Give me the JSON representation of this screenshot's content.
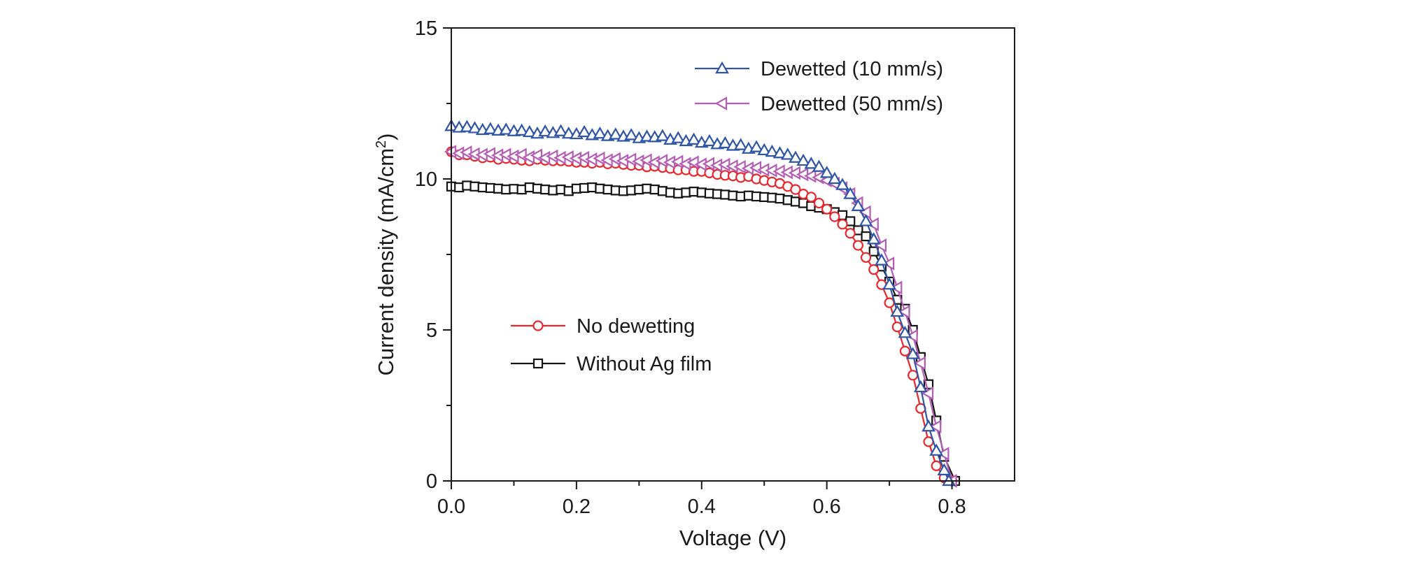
{
  "chart_data": {
    "type": "line",
    "xlabel": "Voltage (V)",
    "ylabel_prefix": "Current density (mA/cm",
    "ylabel_sup": "2",
    "ylabel_suffix": ")",
    "xlim": [
      0.0,
      0.9
    ],
    "ylim": [
      0,
      15
    ],
    "x_ticks": [
      0.0,
      0.2,
      0.4,
      0.6,
      0.8
    ],
    "x_tick_labels": [
      "0.0",
      "0.2",
      "0.4",
      "0.6",
      "0.8"
    ],
    "x_minor_ticks": [
      0.1,
      0.3,
      0.5,
      0.7
    ],
    "y_ticks": [
      0,
      5,
      10,
      15
    ],
    "y_tick_labels": [
      "0",
      "5",
      "10",
      "15"
    ],
    "y_minor_ticks": [
      2.5,
      7.5,
      12.5
    ],
    "series": [
      {
        "name": "Dewetted (10 mm/s)",
        "color": "#2e55a8",
        "marker": "triangle-up",
        "legend_position": "top-right",
        "x": [
          0.0,
          0.0125,
          0.025,
          0.0375,
          0.05,
          0.0625,
          0.075,
          0.0875,
          0.1,
          0.1125,
          0.125,
          0.1375,
          0.15,
          0.1625,
          0.175,
          0.1875,
          0.2,
          0.2125,
          0.225,
          0.2375,
          0.25,
          0.2625,
          0.275,
          0.2875,
          0.3,
          0.3125,
          0.325,
          0.3375,
          0.35,
          0.3625,
          0.375,
          0.3875,
          0.4,
          0.4125,
          0.425,
          0.4375,
          0.45,
          0.4625,
          0.475,
          0.4875,
          0.5,
          0.5125,
          0.525,
          0.5375,
          0.55,
          0.5625,
          0.575,
          0.5875,
          0.6,
          0.6125,
          0.625,
          0.6375,
          0.65,
          0.6625,
          0.675,
          0.6875,
          0.7,
          0.7125,
          0.725,
          0.7375,
          0.75,
          0.7625,
          0.775,
          0.7875,
          0.795
        ],
        "y": [
          11.75,
          11.7,
          11.72,
          11.68,
          11.62,
          11.65,
          11.6,
          11.63,
          11.58,
          11.6,
          11.55,
          11.5,
          11.57,
          11.52,
          11.58,
          11.5,
          11.48,
          11.55,
          11.45,
          11.5,
          11.42,
          11.47,
          11.4,
          11.45,
          11.35,
          11.4,
          11.38,
          11.42,
          11.3,
          11.35,
          11.25,
          11.3,
          11.2,
          11.25,
          11.15,
          11.18,
          11.1,
          11.12,
          11.0,
          11.05,
          10.95,
          10.9,
          10.85,
          10.8,
          10.7,
          10.6,
          10.5,
          10.4,
          10.2,
          10.0,
          9.8,
          9.5,
          9.1,
          8.6,
          8.0,
          7.3,
          6.5,
          5.6,
          4.9,
          4.2,
          3.1,
          1.8,
          1.0,
          0.35,
          0.0
        ]
      },
      {
        "name": "Dewetted (50 mm/s)",
        "color": "#b55cb5",
        "marker": "triangle-left",
        "legend_position": "top-right",
        "x": [
          0.0,
          0.0125,
          0.025,
          0.0375,
          0.05,
          0.0625,
          0.075,
          0.0875,
          0.1,
          0.1125,
          0.125,
          0.1375,
          0.15,
          0.1625,
          0.175,
          0.1875,
          0.2,
          0.2125,
          0.225,
          0.2375,
          0.25,
          0.2625,
          0.275,
          0.2875,
          0.3,
          0.3125,
          0.325,
          0.3375,
          0.35,
          0.3625,
          0.375,
          0.3875,
          0.4,
          0.4125,
          0.425,
          0.4375,
          0.45,
          0.4625,
          0.475,
          0.4875,
          0.5,
          0.5125,
          0.525,
          0.5375,
          0.55,
          0.5625,
          0.575,
          0.5875,
          0.6,
          0.6125,
          0.625,
          0.6375,
          0.65,
          0.6625,
          0.675,
          0.6875,
          0.7,
          0.7125,
          0.725,
          0.7375,
          0.75,
          0.7625,
          0.775,
          0.7875,
          0.8
        ],
        "y": [
          10.9,
          10.85,
          10.88,
          10.82,
          10.8,
          10.83,
          10.78,
          10.8,
          10.75,
          10.8,
          10.72,
          10.78,
          10.7,
          10.75,
          10.7,
          10.72,
          10.68,
          10.7,
          10.65,
          10.68,
          10.62,
          10.66,
          10.6,
          10.64,
          10.58,
          10.62,
          10.55,
          10.6,
          10.55,
          10.57,
          10.5,
          10.55,
          10.48,
          10.5,
          10.45,
          10.47,
          10.42,
          10.4,
          10.35,
          10.37,
          10.3,
          10.28,
          10.25,
          10.22,
          10.2,
          10.15,
          10.1,
          10.05,
          9.95,
          9.85,
          9.7,
          9.5,
          9.2,
          8.9,
          8.5,
          7.8,
          7.2,
          6.4,
          5.6,
          4.8,
          3.9,
          2.9,
          1.8,
          0.9,
          0.0
        ]
      },
      {
        "name": "No dewetting",
        "color": "#e8262b",
        "marker": "circle",
        "legend_position": "bottom-left",
        "x": [
          0.0,
          0.0125,
          0.025,
          0.0375,
          0.05,
          0.0625,
          0.075,
          0.0875,
          0.1,
          0.1125,
          0.125,
          0.1375,
          0.15,
          0.1625,
          0.175,
          0.1875,
          0.2,
          0.2125,
          0.225,
          0.2375,
          0.25,
          0.2625,
          0.275,
          0.2875,
          0.3,
          0.3125,
          0.325,
          0.3375,
          0.35,
          0.3625,
          0.375,
          0.3875,
          0.4,
          0.4125,
          0.425,
          0.4375,
          0.45,
          0.4625,
          0.475,
          0.4875,
          0.5,
          0.5125,
          0.525,
          0.5375,
          0.55,
          0.5625,
          0.575,
          0.5875,
          0.6,
          0.6125,
          0.625,
          0.6375,
          0.65,
          0.6625,
          0.675,
          0.6875,
          0.7,
          0.7125,
          0.725,
          0.7375,
          0.75,
          0.7625,
          0.775,
          0.7875,
          0.8
        ],
        "y": [
          10.9,
          10.8,
          10.8,
          10.75,
          10.7,
          10.72,
          10.65,
          10.68,
          10.65,
          10.62,
          10.6,
          10.65,
          10.62,
          10.6,
          10.6,
          10.58,
          10.55,
          10.55,
          10.52,
          10.55,
          10.5,
          10.52,
          10.48,
          10.45,
          10.45,
          10.4,
          10.42,
          10.38,
          10.35,
          10.3,
          10.3,
          10.25,
          10.25,
          10.2,
          10.15,
          10.12,
          10.1,
          10.05,
          10.08,
          10.0,
          9.95,
          9.9,
          9.85,
          9.75,
          9.65,
          9.5,
          9.4,
          9.2,
          9.0,
          8.75,
          8.5,
          8.2,
          7.8,
          7.4,
          7.0,
          6.5,
          5.9,
          5.1,
          4.3,
          3.5,
          2.4,
          1.3,
          0.5,
          0.1,
          0.0
        ]
      },
      {
        "name": "Without Ag film",
        "color": "#141414",
        "marker": "square",
        "legend_position": "bottom-left",
        "x": [
          0.0,
          0.0125,
          0.025,
          0.0375,
          0.05,
          0.0625,
          0.075,
          0.0875,
          0.1,
          0.1125,
          0.125,
          0.1375,
          0.15,
          0.1625,
          0.175,
          0.1875,
          0.2,
          0.2125,
          0.225,
          0.2375,
          0.25,
          0.2625,
          0.275,
          0.2875,
          0.3,
          0.3125,
          0.325,
          0.3375,
          0.35,
          0.3625,
          0.375,
          0.3875,
          0.4,
          0.4125,
          0.425,
          0.4375,
          0.45,
          0.4625,
          0.475,
          0.4875,
          0.5,
          0.5125,
          0.525,
          0.5375,
          0.55,
          0.5625,
          0.575,
          0.5875,
          0.6,
          0.6125,
          0.625,
          0.6375,
          0.65,
          0.6625,
          0.675,
          0.6875,
          0.7,
          0.7125,
          0.725,
          0.7375,
          0.75,
          0.7625,
          0.775,
          0.7875,
          0.805
        ],
        "y": [
          9.75,
          9.72,
          9.78,
          9.75,
          9.72,
          9.7,
          9.68,
          9.65,
          9.67,
          9.65,
          9.72,
          9.68,
          9.65,
          9.62,
          9.65,
          9.6,
          9.68,
          9.7,
          9.72,
          9.68,
          9.65,
          9.62,
          9.6,
          9.62,
          9.65,
          9.68,
          9.65,
          9.6,
          9.55,
          9.52,
          9.55,
          9.58,
          9.55,
          9.52,
          9.5,
          9.48,
          9.45,
          9.42,
          9.45,
          9.42,
          9.4,
          9.38,
          9.35,
          9.3,
          9.25,
          9.2,
          9.1,
          9.05,
          9.0,
          8.9,
          8.8,
          8.6,
          8.3,
          8.1,
          7.6,
          7.1,
          6.6,
          6.0,
          5.7,
          5.0,
          4.1,
          3.2,
          2.0,
          0.8,
          0.0
        ]
      }
    ]
  }
}
